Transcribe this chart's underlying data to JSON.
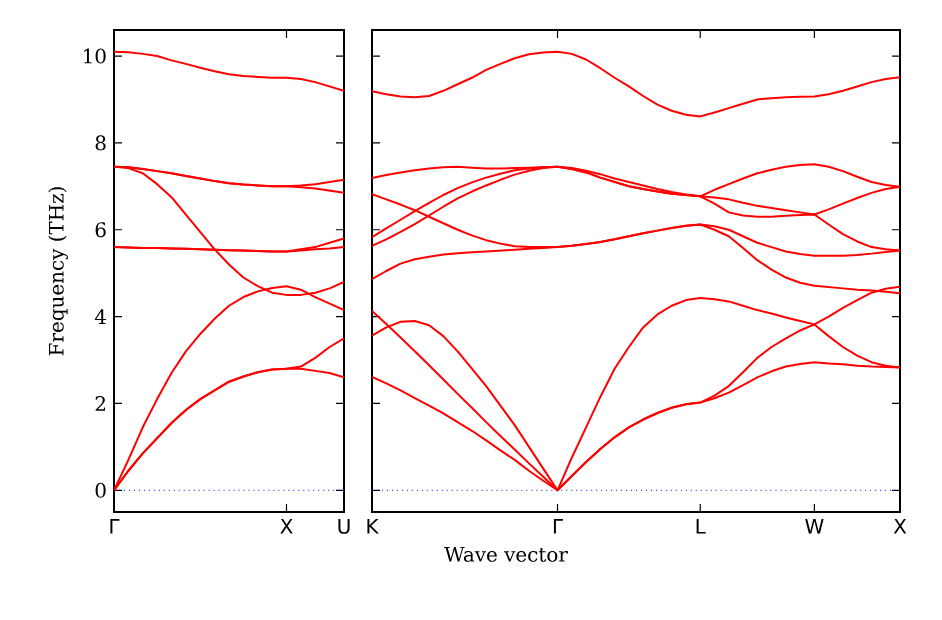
{
  "chart_data": [
    {
      "type": "line",
      "ylabel": "Frequency (THz)",
      "categories": [
        "Γ",
        null,
        null,
        null,
        null,
        null,
        null,
        null,
        null,
        null,
        null,
        null,
        "X",
        null,
        null,
        null,
        "U"
      ],
      "ylim": [
        -0.5,
        10.6
      ],
      "yticks": [
        0,
        2,
        4,
        6,
        8,
        10
      ],
      "ref_lines": [
        {
          "axis": "y",
          "value": 0,
          "color": "#0000ff",
          "line_style": "dotted"
        }
      ],
      "series": [
        {
          "color": "#ff0000",
          "values": [
            0,
            0.45,
            0.85,
            1.2,
            1.55,
            1.85,
            2.1,
            2.3,
            2.5,
            2.62,
            2.72,
            2.78,
            2.8,
            2.8,
            2.75,
            2.7,
            2.6
          ]
        },
        {
          "color": "#ff0000",
          "values": [
            0,
            0.45,
            0.85,
            1.2,
            1.55,
            1.85,
            2.1,
            2.3,
            2.5,
            2.62,
            2.72,
            2.78,
            2.8,
            2.85,
            3.05,
            3.3,
            3.5
          ]
        },
        {
          "color": "#ff0000",
          "values": [
            0,
            0.7,
            1.45,
            2.1,
            2.7,
            3.2,
            3.6,
            3.95,
            4.25,
            4.45,
            4.58,
            4.66,
            4.7,
            4.62,
            4.45,
            4.3,
            4.15
          ]
        },
        {
          "color": "#ff0000",
          "values": [
            7.45,
            7.42,
            7.3,
            7.05,
            6.75,
            6.35,
            5.95,
            5.55,
            5.2,
            4.9,
            4.7,
            4.55,
            4.5,
            4.5,
            4.55,
            4.65,
            4.8
          ]
        },
        {
          "color": "#ff0000",
          "values": [
            5.6,
            5.59,
            5.58,
            5.58,
            5.57,
            5.56,
            5.55,
            5.54,
            5.53,
            5.52,
            5.51,
            5.5,
            5.5,
            5.52,
            5.55,
            5.57,
            5.6
          ]
        },
        {
          "color": "#ff0000",
          "values": [
            5.6,
            5.59,
            5.58,
            5.58,
            5.57,
            5.56,
            5.55,
            5.54,
            5.53,
            5.52,
            5.51,
            5.5,
            5.5,
            5.55,
            5.6,
            5.7,
            5.8
          ]
        },
        {
          "color": "#ff0000",
          "values": [
            7.45,
            7.44,
            7.4,
            7.35,
            7.3,
            7.24,
            7.18,
            7.12,
            7.07,
            7.04,
            7.02,
            7.0,
            7.0,
            7.02,
            7.05,
            7.1,
            7.15
          ]
        },
        {
          "color": "#ff0000",
          "values": [
            7.45,
            7.44,
            7.4,
            7.35,
            7.3,
            7.24,
            7.18,
            7.12,
            7.07,
            7.04,
            7.02,
            7.0,
            7.0,
            6.98,
            6.95,
            6.9,
            6.85
          ]
        },
        {
          "color": "#ff0000",
          "values": [
            10.1,
            10.09,
            10.05,
            10.0,
            9.9,
            9.82,
            9.73,
            9.65,
            9.58,
            9.54,
            9.52,
            9.5,
            9.5,
            9.47,
            9.4,
            9.3,
            9.2
          ]
        }
      ]
    },
    {
      "type": "line",
      "xlabel": "Wave vector",
      "tick_labels": "x",
      "categories": [
        "K",
        null,
        null,
        null,
        null,
        null,
        null,
        null,
        null,
        null,
        null,
        null,
        null,
        "Γ",
        null,
        null,
        null,
        null,
        null,
        null,
        null,
        null,
        null,
        "L",
        null,
        null,
        null,
        null,
        null,
        null,
        null,
        "W",
        null,
        null,
        null,
        null,
        null,
        "X"
      ],
      "ylim": [
        -0.5,
        10.6
      ],
      "yticks": [
        0,
        2,
        4,
        6,
        8,
        10
      ],
      "ref_lines": [
        {
          "axis": "y",
          "value": 0,
          "color": "#0000ff",
          "line_style": "dotted"
        }
      ],
      "series": [
        {
          "color": "#ff0000",
          "values": [
            9.19,
            9.12,
            9.07,
            9.05,
            9.08,
            9.2,
            9.35,
            9.5,
            9.68,
            9.82,
            9.95,
            10.04,
            10.08,
            10.1,
            10.05,
            9.92,
            9.72,
            9.5,
            9.3,
            9.08,
            8.88,
            8.74,
            8.65,
            8.61,
            8.7,
            8.8,
            8.9,
            9.0,
            9.03,
            9.05,
            9.06,
            9.07,
            9.12,
            9.2,
            9.3,
            9.4,
            9.47,
            9.51
          ]
        },
        {
          "color": "#ff0000",
          "values": [
            7.19,
            7.26,
            7.32,
            7.37,
            7.41,
            7.44,
            7.45,
            7.43,
            7.41,
            7.41,
            7.42,
            7.43,
            7.44,
            7.45,
            7.42,
            7.36,
            7.28,
            7.18,
            7.1,
            7.02,
            6.94,
            6.87,
            6.81,
            6.77,
            6.92,
            7.05,
            7.18,
            7.3,
            7.38,
            7.45,
            7.49,
            7.51,
            7.45,
            7.35,
            7.22,
            7.1,
            7.03,
            6.99
          ]
        },
        {
          "color": "#ff0000",
          "values": [
            5.83,
            6.03,
            6.23,
            6.43,
            6.62,
            6.8,
            6.96,
            7.09,
            7.2,
            7.29,
            7.37,
            7.41,
            7.44,
            7.45,
            7.4,
            7.32,
            7.2,
            7.1,
            7.0,
            6.94,
            6.88,
            6.83,
            6.8,
            6.77,
            6.74,
            6.7,
            6.62,
            6.55,
            6.5,
            6.45,
            6.4,
            6.35,
            6.47,
            6.6,
            6.73,
            6.85,
            6.94,
            6.99
          ]
        },
        {
          "color": "#ff0000",
          "values": [
            5.63,
            5.78,
            5.95,
            6.13,
            6.33,
            6.53,
            6.72,
            6.88,
            7.02,
            7.15,
            7.27,
            7.36,
            7.42,
            7.45,
            7.4,
            7.32,
            7.2,
            7.1,
            7.0,
            6.94,
            6.88,
            6.83,
            6.8,
            6.77,
            6.6,
            6.4,
            6.33,
            6.3,
            6.3,
            6.32,
            6.34,
            6.35,
            6.12,
            5.9,
            5.73,
            5.6,
            5.55,
            5.52
          ]
        },
        {
          "color": "#ff0000",
          "values": [
            6.82,
            6.7,
            6.58,
            6.45,
            6.3,
            6.15,
            6.0,
            5.87,
            5.76,
            5.68,
            5.62,
            5.6,
            5.6,
            5.6,
            5.63,
            5.67,
            5.72,
            5.78,
            5.85,
            5.92,
            5.98,
            6.04,
            6.09,
            6.12,
            6.08,
            6.0,
            5.85,
            5.7,
            5.6,
            5.5,
            5.44,
            5.4,
            5.4,
            5.4,
            5.42,
            5.45,
            5.49,
            5.52
          ]
        },
        {
          "color": "#ff0000",
          "values": [
            4.86,
            5.05,
            5.22,
            5.32,
            5.38,
            5.43,
            5.46,
            5.48,
            5.5,
            5.52,
            5.54,
            5.56,
            5.58,
            5.6,
            5.63,
            5.67,
            5.72,
            5.78,
            5.85,
            5.92,
            5.98,
            6.04,
            6.09,
            6.12,
            6.0,
            5.85,
            5.58,
            5.3,
            5.08,
            4.9,
            4.78,
            4.71,
            4.68,
            4.65,
            4.62,
            4.6,
            4.57,
            4.54
          ]
        },
        {
          "color": "#ff0000",
          "values": [
            4.13,
            3.83,
            3.52,
            3.2,
            2.88,
            2.55,
            2.22,
            1.9,
            1.57,
            1.25,
            0.94,
            0.62,
            0.31,
            0,
            0.75,
            1.45,
            2.15,
            2.8,
            3.3,
            3.75,
            4.05,
            4.25,
            4.38,
            4.43,
            4.4,
            4.35,
            4.25,
            4.15,
            4.07,
            3.98,
            3.9,
            3.82,
            3.55,
            3.3,
            3.1,
            2.95,
            2.87,
            2.83
          ]
        },
        {
          "color": "#ff0000",
          "values": [
            3.56,
            3.75,
            3.88,
            3.9,
            3.8,
            3.55,
            3.2,
            2.8,
            2.4,
            1.95,
            1.5,
            1.0,
            0.5,
            0,
            0.33,
            0.65,
            0.95,
            1.22,
            1.45,
            1.63,
            1.78,
            1.9,
            1.98,
            2.02,
            2.18,
            2.4,
            2.72,
            3.05,
            3.3,
            3.5,
            3.68,
            3.82,
            4.0,
            4.2,
            4.38,
            4.55,
            4.64,
            4.69
          ]
        },
        {
          "color": "#ff0000",
          "values": [
            2.61,
            2.46,
            2.3,
            2.12,
            1.95,
            1.77,
            1.57,
            1.37,
            1.15,
            0.92,
            0.7,
            0.45,
            0.22,
            0,
            0.33,
            0.65,
            0.95,
            1.22,
            1.45,
            1.63,
            1.78,
            1.9,
            1.98,
            2.02,
            2.12,
            2.25,
            2.42,
            2.6,
            2.74,
            2.85,
            2.91,
            2.95,
            2.92,
            2.9,
            2.87,
            2.85,
            2.84,
            2.83
          ]
        }
      ]
    }
  ]
}
